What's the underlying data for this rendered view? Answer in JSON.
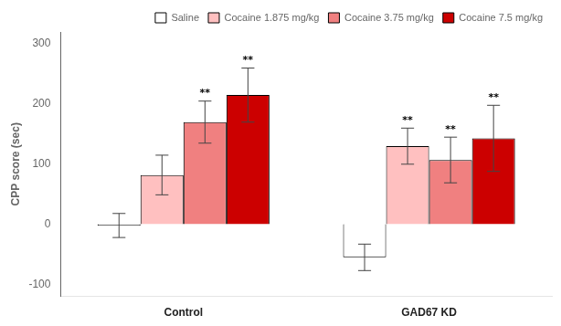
{
  "chart_data": {
    "type": "bar",
    "categories": [
      "Control",
      "GAD67 KD"
    ],
    "series": [
      {
        "name": "Saline",
        "color": "#ffffff",
        "values": [
          -2,
          -55
        ],
        "errors": [
          20,
          22
        ]
      },
      {
        "name": "Cocaine 1.875 mg/kg",
        "color": "#ffc0c0",
        "values": [
          82,
          130
        ],
        "errors": [
          33,
          30
        ]
      },
      {
        "name": "Cocaine 3.75 mg/kg",
        "color": "#f08080",
        "values": [
          170,
          107
        ],
        "errors": [
          35,
          38
        ]
      },
      {
        "name": "Cocaine 7.5 mg/kg",
        "color": "#cc0000",
        "values": [
          215,
          143
        ],
        "errors": [
          45,
          55
        ]
      }
    ],
    "annotations": [
      {
        "category": "Control",
        "series": "Cocaine 3.75 mg/kg",
        "text": "**"
      },
      {
        "category": "Control",
        "series": "Cocaine 7.5 mg/kg",
        "text": "**"
      },
      {
        "category": "GAD67 KD",
        "series": "Cocaine 1.875 mg/kg",
        "text": "**"
      },
      {
        "category": "GAD67 KD",
        "series": "Cocaine 3.75 mg/kg",
        "text": "**"
      },
      {
        "category": "GAD67 KD",
        "series": "Cocaine 7.5 mg/kg",
        "text": "**"
      }
    ],
    "ylabel": "CPP score (sec)",
    "ylim": [
      -120,
      320
    ],
    "yticks": [
      -100,
      0,
      100,
      200,
      300
    ],
    "grid": false,
    "legend": "upper right"
  }
}
